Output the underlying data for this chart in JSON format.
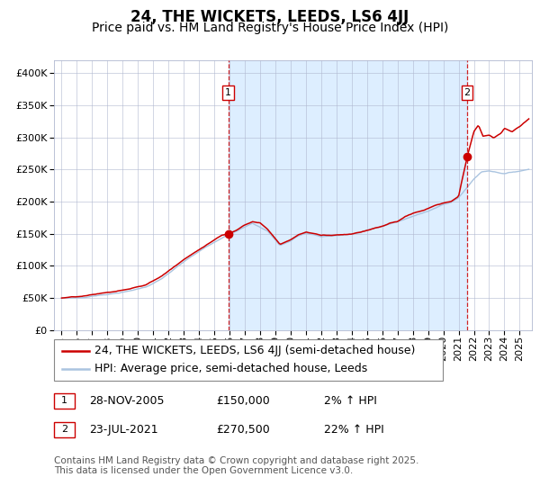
{
  "title1": "24, THE WICKETS, LEEDS, LS6 4JJ",
  "title2": "Price paid vs. HM Land Registry's House Price Index (HPI)",
  "legend_line1": "24, THE WICKETS, LEEDS, LS6 4JJ (semi-detached house)",
  "legend_line2": "HPI: Average price, semi-detached house, Leeds",
  "footnote": "Contains HM Land Registry data © Crown copyright and database right 2025.\nThis data is licensed under the Open Government Licence v3.0.",
  "annotation1_label": "1",
  "annotation1_date": "28-NOV-2005",
  "annotation1_price": "£150,000",
  "annotation1_hpi": "2% ↑ HPI",
  "annotation2_label": "2",
  "annotation2_date": "23-JUL-2021",
  "annotation2_price": "£270,500",
  "annotation2_hpi": "22% ↑ HPI",
  "sale1_x": 2005.91,
  "sale1_y": 150000,
  "sale2_x": 2021.55,
  "sale2_y": 270500,
  "vline1_x": 2005.91,
  "vline2_x": 2021.55,
  "bg_shade_xstart": 2005.91,
  "bg_shade_xend": 2021.55,
  "ylim": [
    0,
    420000
  ],
  "xlim_start": 1994.5,
  "xlim_end": 2025.8,
  "hpi_color": "#aac4e0",
  "price_color": "#cc0000",
  "vline_color": "#cc0000",
  "shade_color": "#ddeeff",
  "grid_color": "#b0b8d0",
  "bg_color": "#ffffff",
  "title_fontsize": 12,
  "subtitle_fontsize": 10,
  "tick_fontsize": 8,
  "legend_fontsize": 9,
  "footnote_fontsize": 7.5,
  "yticks": [
    0,
    50000,
    100000,
    150000,
    200000,
    250000,
    300000,
    350000,
    400000
  ]
}
